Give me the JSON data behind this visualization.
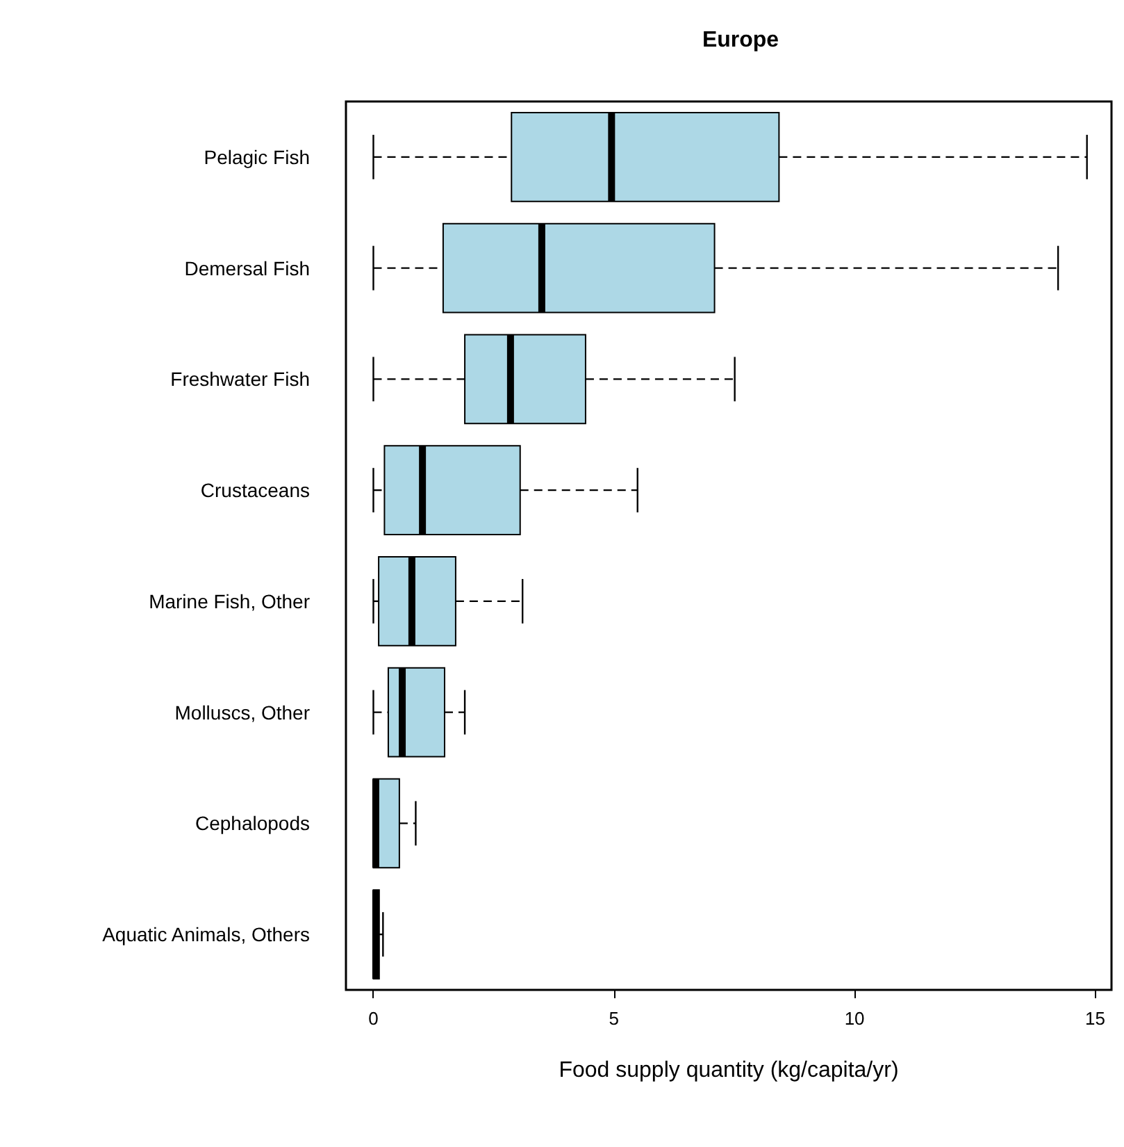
{
  "chart_data": {
    "type": "box",
    "title": "Europe",
    "xlabel": "Food supply quantity (kg/capita/yr)",
    "orientation": "horizontal",
    "color": "#add8e6",
    "line_style": "dashed",
    "categories": [
      "Pelagic Fish",
      "Demersal Fish",
      "Freshwater Fish",
      "Crustaceans",
      "Marine Fish, Other",
      "Molluscs, Other",
      "Cephalopods",
      "Aquatic Animals, Others"
    ],
    "boxes": [
      {
        "low": 0,
        "q1": 2.87,
        "median": 4.95,
        "q3": 8.43,
        "high": 14.83
      },
      {
        "low": 0,
        "q1": 1.45,
        "median": 3.5,
        "q3": 7.09,
        "high": 14.23
      },
      {
        "low": 0,
        "q1": 1.9,
        "median": 2.85,
        "q3": 4.41,
        "high": 7.51
      },
      {
        "low": 0,
        "q1": 0.23,
        "median": 1.02,
        "q3": 3.05,
        "high": 5.49
      },
      {
        "low": 0,
        "q1": 0.11,
        "median": 0.8,
        "q3": 1.71,
        "high": 3.1
      },
      {
        "low": 0,
        "q1": 0.31,
        "median": 0.6,
        "q3": 1.48,
        "high": 1.9
      },
      {
        "low": 0,
        "q1": 0,
        "median": 0.05,
        "q3": 0.54,
        "high": 0.88
      },
      {
        "low": 0,
        "q1": 0,
        "median": 0.05,
        "q3": 0.12,
        "high": 0.2
      }
    ],
    "xlim": [
      -0.57,
      15.34
    ],
    "xticks": [
      0,
      5,
      10,
      15
    ],
    "grid": false
  }
}
